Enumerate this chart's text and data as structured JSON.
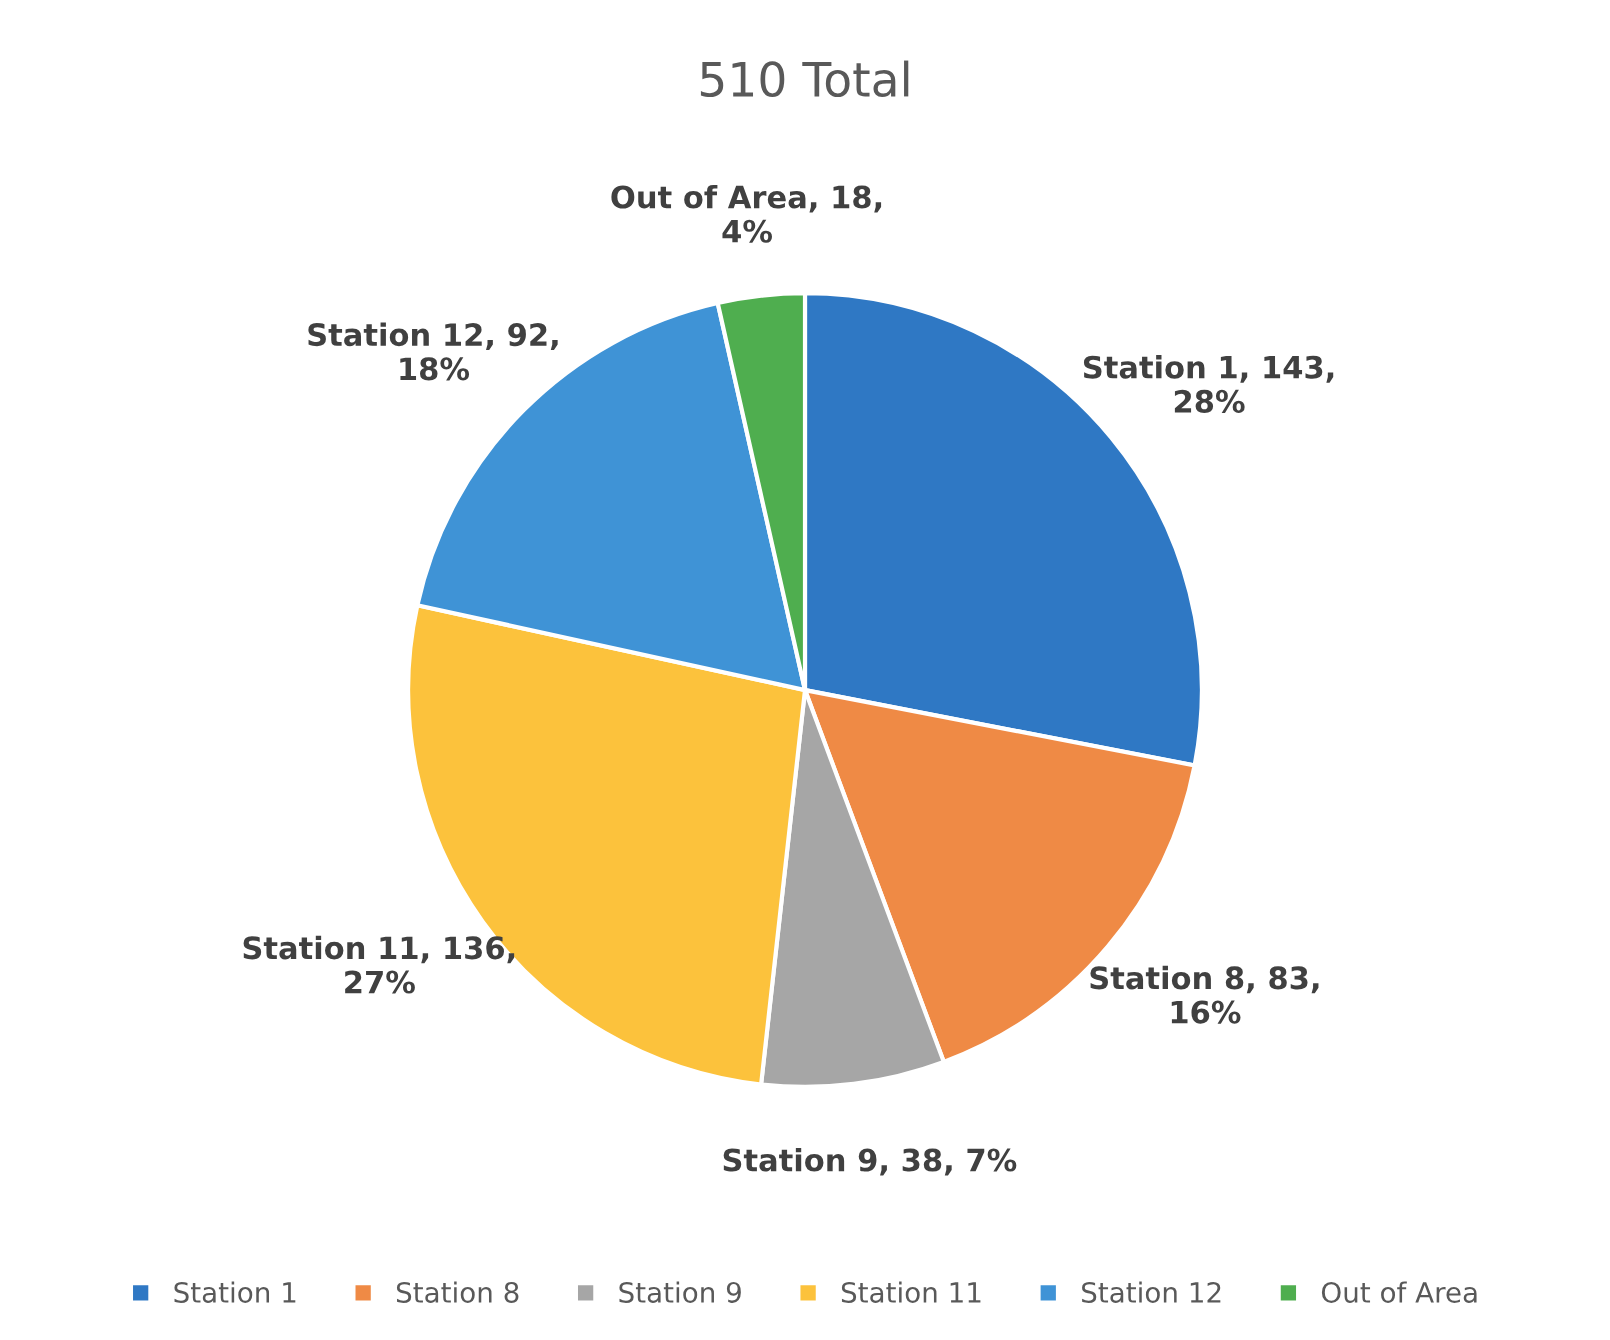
{
  "chart_data": {
    "type": "pie",
    "title": "510 Total",
    "categories": [
      "Station 1",
      "Station 8",
      "Station 9",
      "Station 11",
      "Station 12",
      "Out of Area"
    ],
    "values": [
      143,
      83,
      38,
      136,
      92,
      18
    ],
    "colors": [
      "#2f78c4",
      "#ef8a45",
      "#a6a6a6",
      "#fcc23c",
      "#3f93d6",
      "#4fae4f"
    ],
    "value_labels": [
      "Station 1, 143,\n28%",
      "Station 8, 83,\n16%",
      "Station 9, 38, 7%",
      "Station 11, 136,\n27%",
      "Station 12, 92,\n18%",
      "Out of Area, 18,\n4%"
    ],
    "legend": "bottom"
  }
}
